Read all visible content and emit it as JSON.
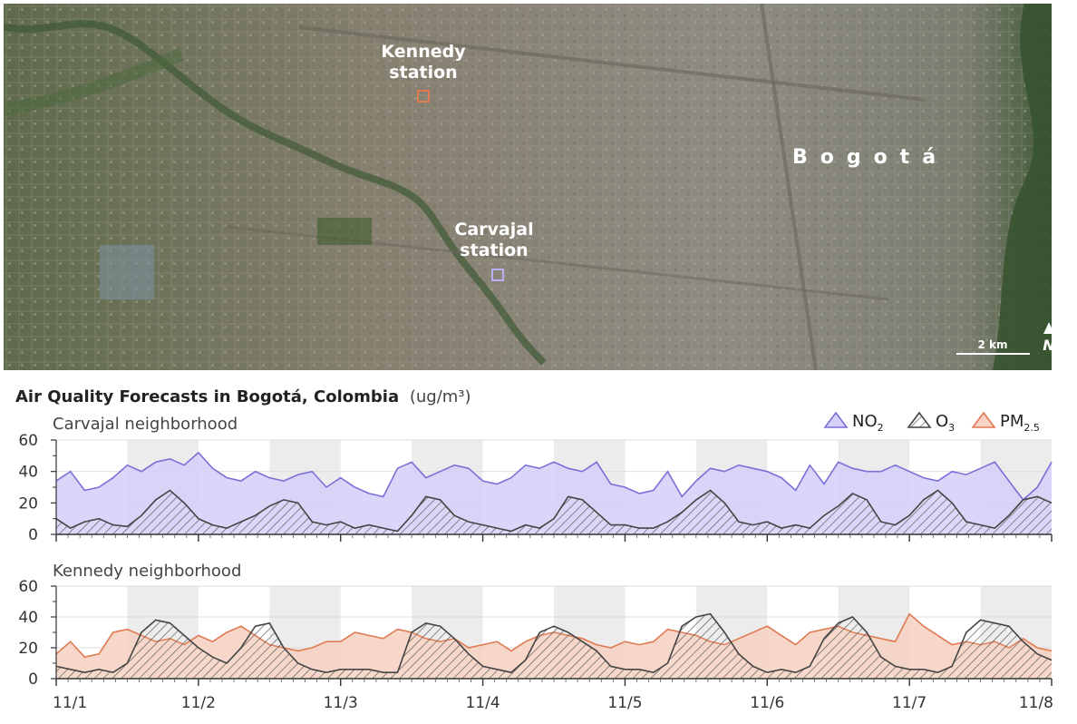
{
  "map": {
    "station_kennedy": [
      "Kennedy",
      "station"
    ],
    "station_carvajal": [
      "Carvajal",
      "station"
    ],
    "city": "Bogotá",
    "scale_label": "2 km",
    "north_label": "N"
  },
  "chart_data": [
    {
      "type": "area",
      "title": "Air Quality Forecasts in Bogotá, Colombia",
      "units": "(ug/m³)",
      "subtitle": "Carvajal neighborhood",
      "x_tick_labels": [
        "11/1",
        "11/2",
        "11/3",
        "11/4",
        "11/5",
        "11/6",
        "11/7",
        "11/8"
      ],
      "xlim": [
        0,
        7
      ],
      "ylim": [
        0,
        60
      ],
      "y_ticks": [
        0,
        20,
        40,
        60
      ],
      "grid": true,
      "legend_position": "top-right",
      "legend": [
        {
          "label": "NO",
          "sub": "2",
          "color": "#7b6fd8"
        },
        {
          "label": "O",
          "sub": "3",
          "color": "#444444"
        },
        {
          "label": "PM",
          "sub": "2.5",
          "color": "#e07a52"
        }
      ],
      "series": [
        {
          "name": "NO2",
          "color": "#7b6fd8",
          "fill": "#d6d1f8",
          "x": [
            0,
            0.1,
            0.2,
            0.3,
            0.4,
            0.5,
            0.6,
            0.7,
            0.8,
            0.9,
            1,
            1.1,
            1.2,
            1.3,
            1.4,
            1.5,
            1.6,
            1.7,
            1.8,
            1.9,
            2,
            2.1,
            2.2,
            2.3,
            2.4,
            2.5,
            2.6,
            2.7,
            2.8,
            2.9,
            3,
            3.1,
            3.2,
            3.3,
            3.4,
            3.5,
            3.6,
            3.7,
            3.8,
            3.9,
            4,
            4.1,
            4.2,
            4.3,
            4.4,
            4.5,
            4.6,
            4.7,
            4.8,
            4.9,
            5,
            5.1,
            5.2,
            5.3,
            5.4,
            5.5,
            5.6,
            5.7,
            5.8,
            5.9,
            6,
            6.1,
            6.2,
            6.3,
            6.4,
            6.5,
            6.6,
            6.7,
            6.8,
            6.9,
            7
          ],
          "y": [
            34,
            40,
            28,
            30,
            36,
            44,
            40,
            46,
            48,
            44,
            52,
            42,
            36,
            34,
            40,
            36,
            34,
            38,
            40,
            30,
            36,
            30,
            26,
            24,
            42,
            46,
            36,
            40,
            44,
            42,
            34,
            32,
            36,
            44,
            42,
            46,
            42,
            40,
            46,
            32,
            30,
            26,
            28,
            40,
            24,
            34,
            42,
            40,
            44,
            42,
            40,
            36,
            28,
            44,
            32,
            46,
            42,
            40,
            40,
            44,
            40,
            36,
            34,
            40,
            38,
            42,
            46,
            34,
            22,
            30,
            46
          ]
        },
        {
          "name": "O3",
          "color": "#444444",
          "fill": "hatch",
          "x": [
            0,
            0.1,
            0.2,
            0.3,
            0.4,
            0.5,
            0.6,
            0.7,
            0.8,
            0.9,
            1,
            1.1,
            1.2,
            1.3,
            1.4,
            1.5,
            1.6,
            1.7,
            1.8,
            1.9,
            2,
            2.1,
            2.2,
            2.3,
            2.4,
            2.5,
            2.6,
            2.7,
            2.8,
            2.9,
            3,
            3.1,
            3.2,
            3.3,
            3.4,
            3.5,
            3.6,
            3.7,
            3.8,
            3.9,
            4,
            4.1,
            4.2,
            4.3,
            4.4,
            4.5,
            4.6,
            4.7,
            4.8,
            4.9,
            5,
            5.1,
            5.2,
            5.3,
            5.4,
            5.5,
            5.6,
            5.7,
            5.8,
            5.9,
            6,
            6.1,
            6.2,
            6.3,
            6.4,
            6.5,
            6.6,
            6.7,
            6.8,
            6.9,
            7
          ],
          "y": [
            10,
            4,
            8,
            10,
            6,
            5,
            12,
            22,
            28,
            20,
            10,
            6,
            4,
            8,
            12,
            18,
            22,
            20,
            8,
            6,
            8,
            4,
            6,
            4,
            2,
            12,
            24,
            22,
            12,
            8,
            6,
            4,
            2,
            6,
            4,
            10,
            24,
            22,
            14,
            6,
            6,
            4,
            4,
            8,
            14,
            22,
            28,
            20,
            8,
            6,
            8,
            4,
            6,
            4,
            12,
            18,
            26,
            22,
            8,
            6,
            12,
            22,
            28,
            20,
            8,
            6,
            4,
            12,
            22,
            24,
            20
          ]
        }
      ]
    },
    {
      "type": "area",
      "subtitle": "Kennedy neighborhood",
      "x_tick_labels": [
        "11/1",
        "11/2",
        "11/3",
        "11/4",
        "11/5",
        "11/6",
        "11/7",
        "11/8"
      ],
      "xlim": [
        0,
        7
      ],
      "ylim": [
        0,
        60
      ],
      "y_ticks": [
        0,
        20,
        40,
        60
      ],
      "grid": true,
      "series": [
        {
          "name": "PM2.5",
          "color": "#e07a52",
          "fill": "#f6d3c3",
          "x": [
            0,
            0.1,
            0.2,
            0.3,
            0.4,
            0.5,
            0.6,
            0.7,
            0.8,
            0.9,
            1,
            1.1,
            1.2,
            1.3,
            1.4,
            1.5,
            1.6,
            1.7,
            1.8,
            1.9,
            2,
            2.1,
            2.2,
            2.3,
            2.4,
            2.5,
            2.6,
            2.7,
            2.8,
            2.9,
            3,
            3.1,
            3.2,
            3.3,
            3.4,
            3.5,
            3.6,
            3.7,
            3.8,
            3.9,
            4,
            4.1,
            4.2,
            4.3,
            4.4,
            4.5,
            4.6,
            4.7,
            4.8,
            4.9,
            5,
            5.1,
            5.2,
            5.3,
            5.4,
            5.5,
            5.6,
            5.7,
            5.8,
            5.9,
            6,
            6.1,
            6.2,
            6.3,
            6.4,
            6.5,
            6.6,
            6.7,
            6.8,
            6.9,
            7
          ],
          "y": [
            16,
            24,
            14,
            16,
            30,
            32,
            28,
            24,
            26,
            22,
            28,
            24,
            30,
            34,
            28,
            22,
            20,
            18,
            20,
            24,
            24,
            30,
            28,
            26,
            32,
            30,
            26,
            24,
            26,
            20,
            22,
            24,
            18,
            24,
            28,
            30,
            28,
            26,
            22,
            20,
            24,
            22,
            24,
            32,
            30,
            28,
            24,
            22,
            26,
            30,
            34,
            28,
            22,
            30,
            32,
            34,
            30,
            28,
            26,
            24,
            42,
            34,
            28,
            22,
            24,
            22,
            24,
            20,
            26,
            20,
            18
          ]
        },
        {
          "name": "O3",
          "color": "#444444",
          "fill": "hatch",
          "x": [
            0,
            0.1,
            0.2,
            0.3,
            0.4,
            0.5,
            0.6,
            0.7,
            0.8,
            0.9,
            1,
            1.1,
            1.2,
            1.3,
            1.4,
            1.5,
            1.6,
            1.7,
            1.8,
            1.9,
            2,
            2.1,
            2.2,
            2.3,
            2.4,
            2.5,
            2.6,
            2.7,
            2.8,
            2.9,
            3,
            3.1,
            3.2,
            3.3,
            3.4,
            3.5,
            3.6,
            3.7,
            3.8,
            3.9,
            4,
            4.1,
            4.2,
            4.3,
            4.4,
            4.5,
            4.6,
            4.7,
            4.8,
            4.9,
            5,
            5.1,
            5.2,
            5.3,
            5.4,
            5.5,
            5.6,
            5.7,
            5.8,
            5.9,
            6,
            6.1,
            6.2,
            6.3,
            6.4,
            6.5,
            6.6,
            6.7,
            6.8,
            6.9,
            7
          ],
          "y": [
            8,
            6,
            4,
            6,
            4,
            10,
            30,
            38,
            36,
            28,
            20,
            14,
            10,
            20,
            34,
            36,
            20,
            10,
            6,
            4,
            6,
            6,
            6,
            4,
            4,
            30,
            36,
            34,
            26,
            16,
            8,
            6,
            4,
            12,
            30,
            34,
            30,
            24,
            18,
            8,
            6,
            6,
            4,
            10,
            34,
            40,
            42,
            30,
            16,
            8,
            4,
            6,
            4,
            8,
            26,
            36,
            40,
            30,
            14,
            8,
            6,
            6,
            4,
            8,
            30,
            38,
            36,
            34,
            24,
            16,
            12
          ]
        }
      ]
    }
  ]
}
